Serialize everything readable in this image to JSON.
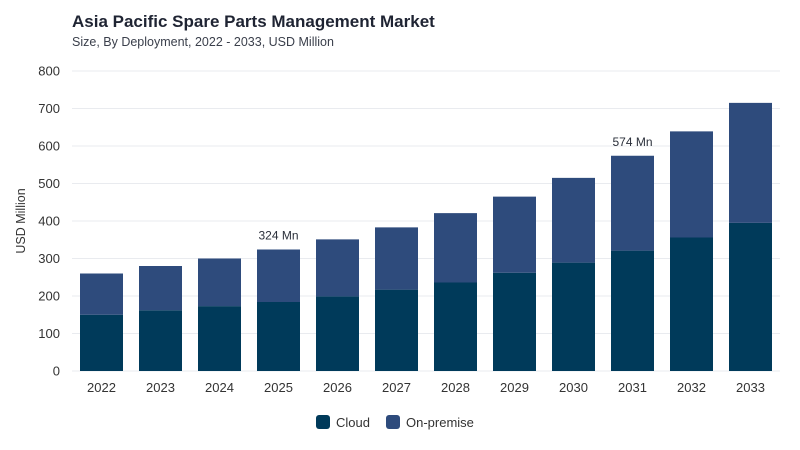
{
  "header": {
    "title": "Asia Pacific Spare Parts Management Market",
    "subtitle": "Size, By Deployment, 2022 - 2033, USD Million"
  },
  "colors": {
    "cloud": "#003a5a",
    "on_premise": "#2e4b7c",
    "grid": "#e9ebef",
    "axis_text": "#333333"
  },
  "chart_data": {
    "type": "bar",
    "stacked": true,
    "title": "Asia Pacific Spare Parts Management Market",
    "subtitle": "Size, By Deployment, 2022 - 2033, USD Million",
    "xlabel": "",
    "ylabel": "USD Million",
    "ylim": [
      0,
      800
    ],
    "yticks": [
      0,
      100,
      200,
      300,
      400,
      500,
      600,
      700,
      800
    ],
    "grid": true,
    "legend_position": "bottom-center",
    "categories": [
      "2022",
      "2023",
      "2024",
      "2025",
      "2026",
      "2027",
      "2028",
      "2029",
      "2030",
      "2031",
      "2032",
      "2033"
    ],
    "series": [
      {
        "name": "Cloud",
        "values": [
          150,
          162,
          173,
          184,
          199,
          217,
          236,
          262,
          289,
          321,
          356,
          395
        ]
      },
      {
        "name": "On-premise",
        "values": [
          110,
          118,
          127,
          140,
          152,
          166,
          185,
          203,
          226,
          253,
          283,
          320
        ]
      }
    ],
    "annotations": [
      {
        "category": "2025",
        "text": "324 Mn"
      },
      {
        "category": "2031",
        "text": "574 Mn"
      }
    ]
  }
}
